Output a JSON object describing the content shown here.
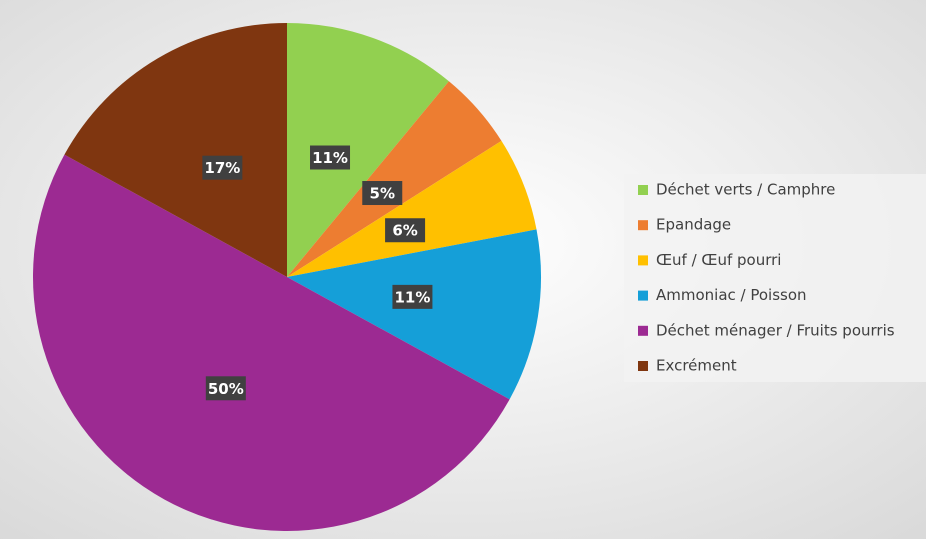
{
  "chart_data": {
    "type": "pie",
    "categories": [
      "Déchet verts / Camphre",
      "Epandage",
      "Œuf / Œuf pourri",
      "Ammoniac / Poisson",
      "Déchet ménager / Fruits pourris",
      "Excrément"
    ],
    "values": [
      11,
      5,
      6,
      11,
      50,
      17
    ],
    "value_labels": [
      "11%",
      "5%",
      "6%",
      "11%",
      "50%",
      "17%"
    ],
    "colors": [
      "#92d050",
      "#ed7d31",
      "#ffc000",
      "#159fd8",
      "#9c2a92",
      "#7f3610"
    ],
    "legend": "right"
  }
}
